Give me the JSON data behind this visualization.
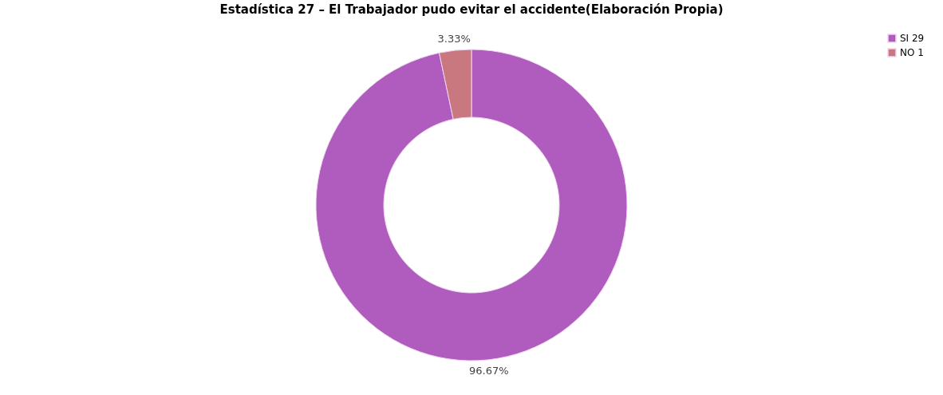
{
  "chart_data": {
    "type": "donut",
    "title": "Estadística 27 – El Trabajador pudo evitar el accidente(Elaboración Propia)",
    "categories": [
      "SI 29",
      "NO 1"
    ],
    "values": [
      96.67,
      3.33
    ],
    "colors": [
      "#b05cbf",
      "#c97880"
    ],
    "value_labels": [
      "96.67%",
      "3.33%"
    ],
    "legend": "top right"
  }
}
